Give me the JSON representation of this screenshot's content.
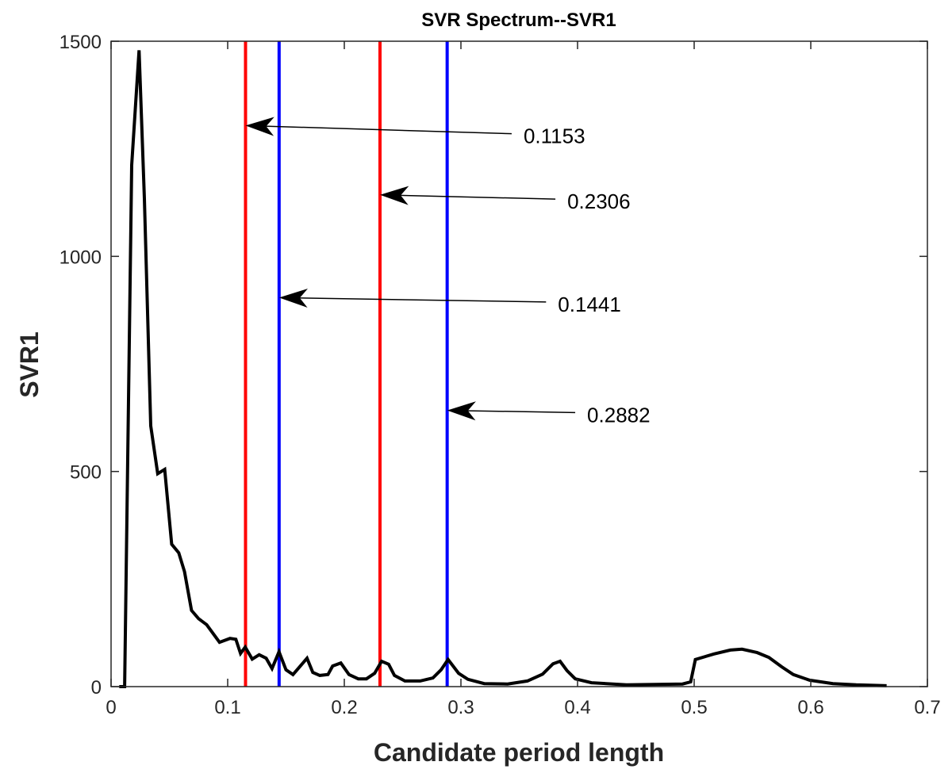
{
  "chart_data": {
    "type": "line",
    "title": "SVR Spectrum--SVR1",
    "xlabel": "Candidate period length",
    "ylabel": "SVR1",
    "xlim": [
      0,
      0.7
    ],
    "ylim": [
      0,
      1500
    ],
    "xticks": [
      "0",
      "0.1",
      "0.2",
      "0.3",
      "0.4",
      "0.5",
      "0.6",
      "0.7"
    ],
    "xtick_values": [
      0,
      0.1,
      0.2,
      0.3,
      0.4,
      0.5,
      0.6,
      0.7
    ],
    "yticks": [
      "0",
      "500",
      "1000",
      "1500"
    ],
    "ytick_values": [
      0,
      500,
      1000,
      1500
    ],
    "grid": false,
    "series": [
      {
        "name": "SVR1",
        "color": "#000000",
        "x": [
          0.007,
          0.0116,
          0.0177,
          0.024,
          0.0286,
          0.034,
          0.04,
          0.046,
          0.052,
          0.058,
          0.063,
          0.069,
          0.075,
          0.082,
          0.093,
          0.102,
          0.107,
          0.111,
          0.115,
          0.121,
          0.127,
          0.133,
          0.138,
          0.144,
          0.15,
          0.156,
          0.168,
          0.173,
          0.179,
          0.186,
          0.19,
          0.197,
          0.204,
          0.212,
          0.219,
          0.226,
          0.232,
          0.238,
          0.243,
          0.252,
          0.265,
          0.276,
          0.283,
          0.289,
          0.298,
          0.306,
          0.32,
          0.34,
          0.357,
          0.37,
          0.379,
          0.385,
          0.391,
          0.398,
          0.412,
          0.442,
          0.49,
          0.497,
          0.501,
          0.517,
          0.531,
          0.541,
          0.554,
          0.564,
          0.575,
          0.585,
          0.599,
          0.619,
          0.639,
          0.665
        ],
        "y": [
          0,
          0,
          1212,
          1479,
          1134,
          606,
          495,
          505,
          331,
          311,
          267,
          177,
          158,
          144,
          103,
          112,
          110,
          77,
          92,
          64,
          74,
          66,
          42,
          81,
          39,
          28,
          66,
          33,
          26,
          28,
          48,
          55,
          28,
          18,
          18,
          31,
          59,
          52,
          26,
          13,
          13,
          20,
          39,
          63,
          31,
          17,
          7,
          6,
          13,
          29,
          53,
          59,
          37,
          18,
          9,
          4,
          6,
          11,
          63,
          76,
          85,
          87,
          79,
          68,
          46,
          28,
          15,
          7,
          4,
          2
        ]
      }
    ],
    "vlines": [
      {
        "x": 0.1153,
        "color": "#ff0000"
      },
      {
        "x": 0.1441,
        "color": "#0000ff"
      },
      {
        "x": 0.2306,
        "color": "#ff0000"
      },
      {
        "x": 0.2882,
        "color": "#0000ff"
      }
    ],
    "annotations": [
      {
        "text": "0.1153",
        "head": [
          0.1153,
          1304
        ],
        "tail": [
          0.3435,
          1285
        ]
      },
      {
        "text": "0.2306",
        "head": [
          0.2306,
          1143
        ],
        "tail": [
          0.381,
          1133
        ]
      },
      {
        "text": "0.1441",
        "head": [
          0.1441,
          904
        ],
        "tail": [
          0.373,
          894
        ]
      },
      {
        "text": "0.2882",
        "head": [
          0.2882,
          642
        ],
        "tail": [
          0.398,
          637
        ]
      }
    ]
  }
}
